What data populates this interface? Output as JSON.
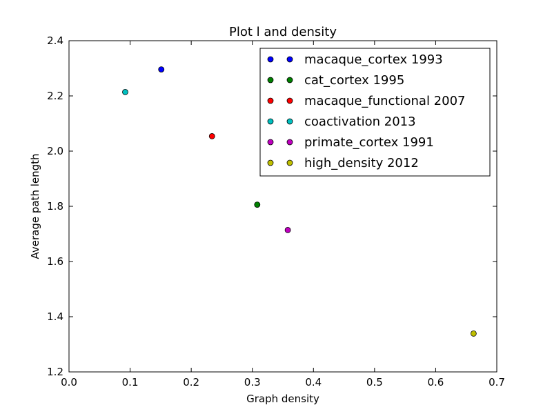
{
  "chart_data": {
    "type": "scatter",
    "title": "Plot l and density",
    "xlabel": "Graph density",
    "ylabel": "Average path length",
    "xlim": [
      0.0,
      0.7
    ],
    "ylim": [
      1.2,
      2.4
    ],
    "xticks": [
      "0.0",
      "0.1",
      "0.2",
      "0.3",
      "0.4",
      "0.5",
      "0.6",
      "0.7"
    ],
    "yticks": [
      "1.2",
      "1.4",
      "1.6",
      "1.8",
      "2.0",
      "2.2",
      "2.4"
    ],
    "grid": false,
    "legend_position": "top-right",
    "series": [
      {
        "name": "macaque_cortex 1993",
        "color": "#0000ff",
        "x": [
          0.151
        ],
        "y": [
          2.296
        ]
      },
      {
        "name": "cat_cortex 1995",
        "color": "#008000",
        "x": [
          0.308
        ],
        "y": [
          1.806
        ]
      },
      {
        "name": "macaque_functional 2007",
        "color": "#ff0000",
        "x": [
          0.234
        ],
        "y": [
          2.054
        ]
      },
      {
        "name": "coactivation 2013",
        "color": "#00bfbf",
        "x": [
          0.092
        ],
        "y": [
          2.214
        ]
      },
      {
        "name": "primate_cortex 1991",
        "color": "#bf00bf",
        "x": [
          0.358
        ],
        "y": [
          1.714
        ]
      },
      {
        "name": "high_density 2012",
        "color": "#bfbf00",
        "x": [
          0.662
        ],
        "y": [
          1.339
        ]
      }
    ]
  }
}
